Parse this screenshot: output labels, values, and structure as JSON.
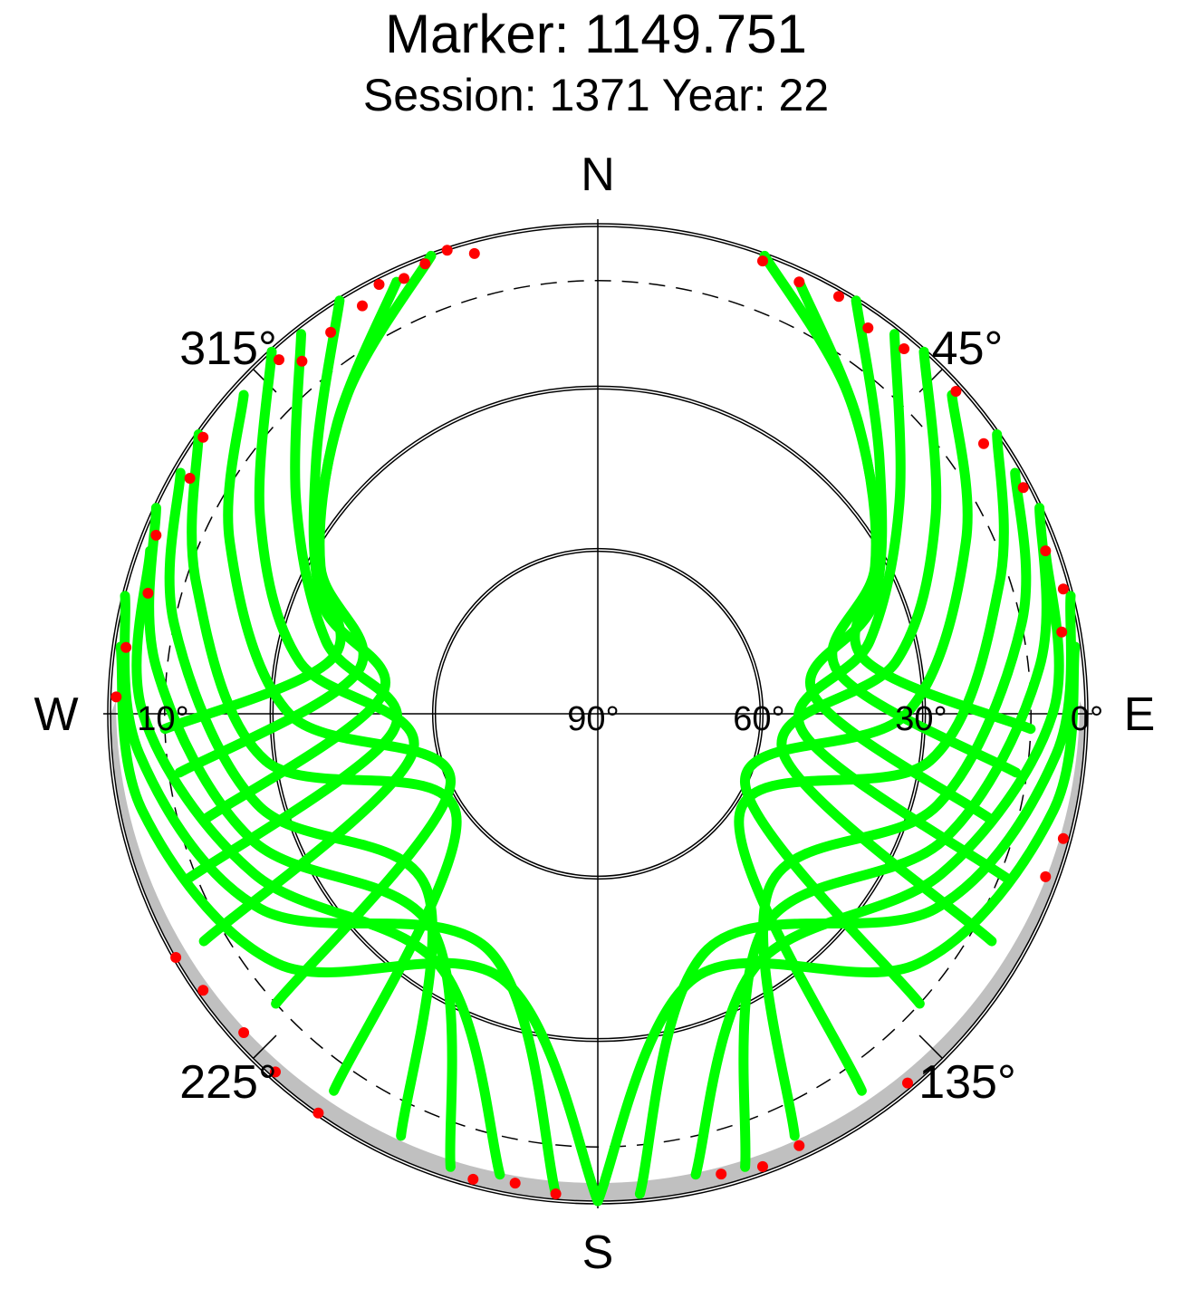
{
  "chart_data": {
    "type": "scatter",
    "projection": "polar-skyplot",
    "title": "Marker: 1149.751",
    "subtitle": "Session: 1371 Year: 22",
    "compass": {
      "north": "N",
      "south": "S",
      "east": "E",
      "west": "W"
    },
    "azimuth_labels": [
      "45°",
      "135°",
      "225°",
      "315°"
    ],
    "elevation_labels": [
      "0°",
      "30°",
      "60°",
      "90°",
      "10°"
    ],
    "elevation_rings": [
      0,
      30,
      60
    ],
    "dashed_ring_elevation": 10,
    "grid": true,
    "colors": {
      "good": "#00ff00",
      "flagged": "#ff0000",
      "horizon_mask": "#c0c0c0",
      "ink": "#000000"
    },
    "legend": "none",
    "tracks": [
      {
        "az": [
          340,
          322,
          300,
          282,
          268
        ],
        "el": [
          0,
          15,
          30,
          40,
          10
        ]
      },
      {
        "az": [
          335,
          318,
          298,
          280,
          262
        ],
        "el": [
          2,
          18,
          32,
          45,
          12
        ]
      },
      {
        "az": [
          328,
          312,
          292,
          275,
          255
        ],
        "el": [
          0,
          20,
          35,
          50,
          15
        ]
      },
      {
        "az": [
          322,
          305,
          285,
          265,
          248
        ],
        "el": [
          1,
          22,
          38,
          52,
          8
        ]
      },
      {
        "az": [
          318,
          300,
          280,
          258,
          240
        ],
        "el": [
          0,
          18,
          34,
          55,
          6
        ]
      },
      {
        "az": [
          312,
          295,
          270,
          245,
          228
        ],
        "el": [
          2,
          15,
          33,
          60,
          10
        ]
      },
      {
        "az": [
          305,
          288,
          262,
          235,
          215
        ],
        "el": [
          0,
          12,
          28,
          58,
          5
        ]
      },
      {
        "az": [
          300,
          282,
          255,
          225,
          205
        ],
        "el": [
          1,
          10,
          25,
          45,
          4
        ]
      },
      {
        "az": [
          295,
          276,
          250,
          218,
          198
        ],
        "el": [
          0,
          8,
          22,
          40,
          2
        ]
      },
      {
        "az": [
          290,
          270,
          245,
          212,
          192
        ],
        "el": [
          2,
          6,
          20,
          35,
          3
        ]
      },
      {
        "az": [
          284,
          265,
          240,
          205,
          185
        ],
        "el": [
          0,
          5,
          18,
          42,
          1
        ]
      },
      {
        "az": [
          278,
          258,
          232,
          200,
          180
        ],
        "el": [
          1,
          4,
          15,
          38,
          0
        ]
      },
      {
        "az": [
          20,
          38,
          60,
          78,
          92
        ],
        "el": [
          0,
          15,
          30,
          40,
          10
        ]
      },
      {
        "az": [
          25,
          42,
          62,
          80,
          98
        ],
        "el": [
          2,
          18,
          32,
          45,
          12
        ]
      },
      {
        "az": [
          32,
          48,
          68,
          85,
          105
        ],
        "el": [
          0,
          20,
          35,
          50,
          15
        ]
      },
      {
        "az": [
          38,
          55,
          75,
          95,
          112
        ],
        "el": [
          1,
          22,
          38,
          52,
          8
        ]
      },
      {
        "az": [
          42,
          60,
          80,
          102,
          120
        ],
        "el": [
          0,
          18,
          34,
          55,
          6
        ]
      },
      {
        "az": [
          48,
          65,
          90,
          115,
          132
        ],
        "el": [
          2,
          15,
          33,
          60,
          10
        ]
      },
      {
        "az": [
          55,
          72,
          98,
          125,
          145
        ],
        "el": [
          0,
          12,
          28,
          58,
          5
        ]
      },
      {
        "az": [
          60,
          78,
          105,
          135,
          155
        ],
        "el": [
          1,
          10,
          25,
          45,
          4
        ]
      },
      {
        "az": [
          65,
          84,
          110,
          142,
          162
        ],
        "el": [
          0,
          8,
          22,
          40,
          2
        ]
      },
      {
        "az": [
          70,
          90,
          115,
          148,
          168
        ],
        "el": [
          2,
          6,
          20,
          35,
          3
        ]
      },
      {
        "az": [
          76,
          95,
          120,
          155,
          175
        ],
        "el": [
          0,
          5,
          18,
          42,
          1
        ]
      },
      {
        "az": [
          82,
          102,
          128,
          160,
          180
        ],
        "el": [
          1,
          4,
          15,
          38,
          0
        ]
      }
    ],
    "flagged_points": [
      {
        "az": 333,
        "el": 1
      },
      {
        "az": 336,
        "el": 2
      },
      {
        "az": 339,
        "el": 1
      },
      {
        "az": 342,
        "el": 0
      },
      {
        "az": 345,
        "el": 2
      },
      {
        "az": 330,
        "el": 3
      },
      {
        "az": 325,
        "el": 4
      },
      {
        "az": 320,
        "el": 5
      },
      {
        "az": 318,
        "el": 2
      },
      {
        "az": 305,
        "el": 1
      },
      {
        "az": 300,
        "el": 3
      },
      {
        "az": 292,
        "el": 2
      },
      {
        "az": 285,
        "el": 4
      },
      {
        "az": 278,
        "el": 2
      },
      {
        "az": 272,
        "el": 1
      },
      {
        "az": 240,
        "el": 0
      },
      {
        "az": 235,
        "el": 1
      },
      {
        "az": 228,
        "el": 2
      },
      {
        "az": 222,
        "el": 1
      },
      {
        "az": 215,
        "el": 0
      },
      {
        "az": 195,
        "el": 1
      },
      {
        "az": 190,
        "el": 2
      },
      {
        "az": 185,
        "el": 1
      },
      {
        "az": 20,
        "el": 1
      },
      {
        "az": 25,
        "el": 2
      },
      {
        "az": 30,
        "el": 1
      },
      {
        "az": 35,
        "el": 3
      },
      {
        "az": 40,
        "el": 2
      },
      {
        "az": 48,
        "el": 1
      },
      {
        "az": 55,
        "el": 3
      },
      {
        "az": 62,
        "el": 1
      },
      {
        "az": 70,
        "el": 2
      },
      {
        "az": 75,
        "el": 1
      },
      {
        "az": 80,
        "el": 3
      },
      {
        "az": 105,
        "el": 1
      },
      {
        "az": 110,
        "el": 2
      },
      {
        "az": 140,
        "el": 1
      },
      {
        "az": 155,
        "el": 2
      },
      {
        "az": 160,
        "el": 1
      },
      {
        "az": 165,
        "el": 2
      }
    ]
  }
}
